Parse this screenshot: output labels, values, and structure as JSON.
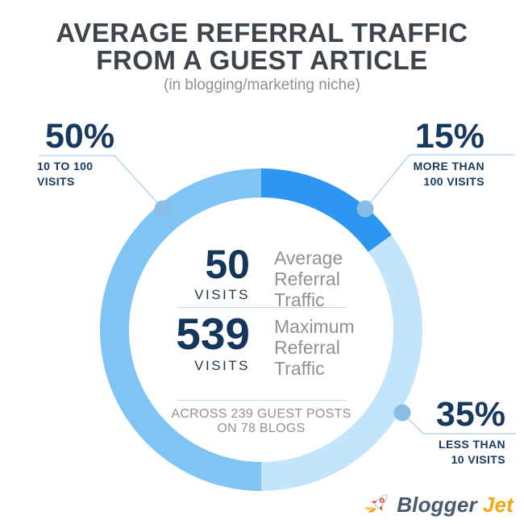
{
  "header": {
    "title_line1": "AVERAGE REFERRAL TRAFFIC",
    "title_line2": "FROM A GUEST ARTICLE",
    "subtitle": "(in blogging/marketing niche)"
  },
  "chart_data": {
    "type": "pie",
    "variant": "donut",
    "title": "Average referral traffic from a guest article",
    "subtitle": "in blogging/marketing niche",
    "legend_position": "callouts",
    "slices": [
      {
        "label": "MORE THAN 100 VISITS",
        "pct": 15,
        "color": "#2d96f0"
      },
      {
        "label": "LESS THAN 10 VISITS",
        "pct": 35,
        "color": "#c3e5fb"
      },
      {
        "label": "10 TO 100 VISITS",
        "pct": 50,
        "color": "#7fc4f4"
      }
    ],
    "center_stats": [
      {
        "value": "50",
        "unit": "VISITS",
        "label": "Average Referral Traffic"
      },
      {
        "value": "539",
        "unit": "VISITS",
        "label": "Maximum Referral Traffic"
      }
    ],
    "footnote": "Across 239 guest posts on 78 blogs"
  },
  "callouts": {
    "c50": {
      "pct": "50%",
      "sub": "10 TO 100\nVISITS"
    },
    "c15": {
      "pct": "15%",
      "sub": "MORE THAN\n100 VISITS"
    },
    "c35": {
      "pct": "35%",
      "sub": "LESS THAN\n10 VISITS"
    }
  },
  "center_panel": {
    "stat1_value": "50",
    "stat1_unit": "VISITS",
    "stat1_label": "Average\nReferral\nTraffic",
    "stat2_value": "539",
    "stat2_unit": "VISITS",
    "stat2_label": "Maximum\nReferral\nTraffic",
    "footnote": "ACROSS 239 GUEST POSTS\nON 78 BLOGS"
  },
  "logo": {
    "brand_part1": "Blogger",
    "brand_part2": "Jet",
    "icon": "rocket-icon"
  },
  "colors": {
    "navy_text": "#18395e",
    "title_text": "#3d444c",
    "gray_text": "#8d9298",
    "leader_line": "#a9cfeb",
    "connector_dot": "#8abde5",
    "divider": "#b9ddf3",
    "brand_slate": "#4a5a6e",
    "brand_orange": "#f3a712"
  }
}
